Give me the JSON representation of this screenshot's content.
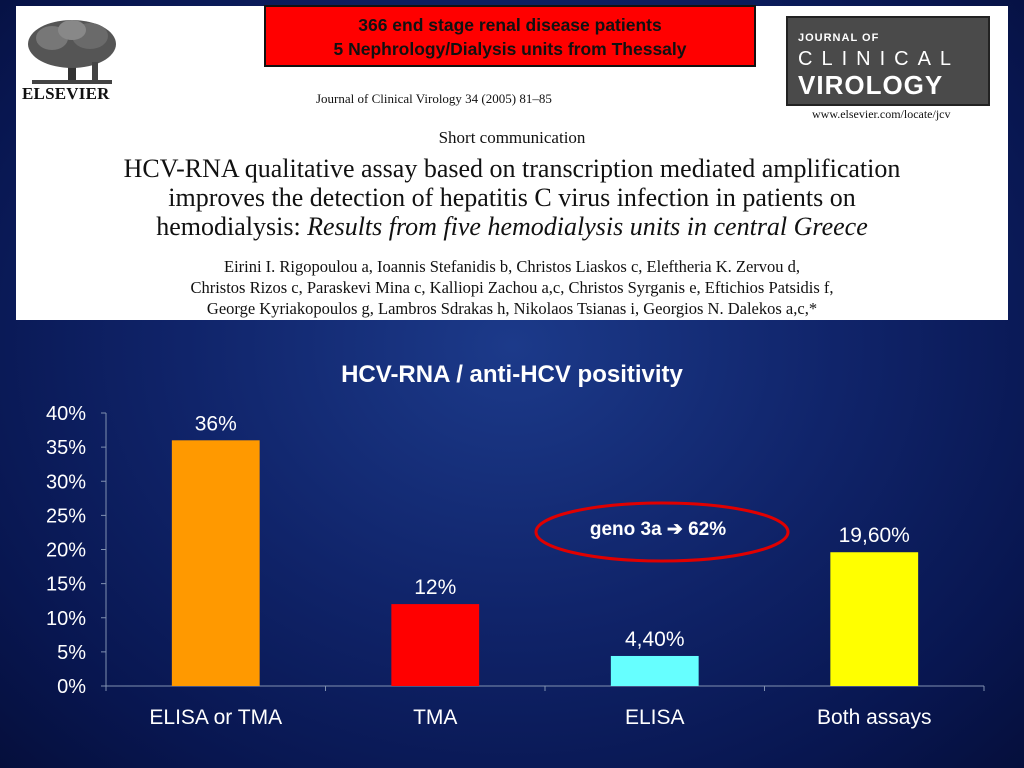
{
  "paper": {
    "publisher": "ELSEVIER",
    "citation": "Journal of Clinical Virology 34 (2005) 81–85",
    "logo_line1": "JOURNAL OF",
    "logo_line2": "CLINICAL",
    "logo_line3": "VIROLOGY",
    "url": "www.elsevier.com/locate/jcv",
    "section": "Short communication",
    "title_line1": "HCV-RNA qualitative assay based on transcription mediated amplification",
    "title_line2": "improves the detection of hepatitis C virus infection in patients on",
    "title_line3_plain": "hemodialysis: ",
    "title_line3_italic": "Results from five hemodialysis units in central Greece",
    "authors_line1": "Eirini I. Rigopoulou a, Ioannis Stefanidis b, Christos Liaskos c, Eleftheria K. Zervou d,",
    "authors_line2": "Christos Rizos c, Paraskevi Mina c, Kalliopi Zachou a,c, Christos Syrganis e, Eftichios Patsidis f,",
    "authors_line3": "George Kyriakopoulos g, Lambros Sdrakas h, Nikolaos Tsianas i, Georgios N. Dalekos a,c,*"
  },
  "banner": {
    "line1": "366 end stage renal disease patients",
    "line2": "5 Nephrology/Dialysis units from Thessaly"
  },
  "annotation": {
    "text": "geno 3a ➔ 62%"
  },
  "colors": {
    "bar1": "#ff9900",
    "bar2": "#ff0000",
    "bar3": "#66ffff",
    "bar4": "#ffff00",
    "annotation_ring": "#e00000"
  },
  "chart_data": {
    "type": "bar",
    "title": "HCV-RNA / anti-HCV positivity",
    "categories": [
      "ELISA or TMA",
      "TMA",
      "ELISA",
      "Both assays"
    ],
    "values": [
      36,
      12,
      4.4,
      19.6
    ],
    "value_labels": [
      "36%",
      "12%",
      "4,40%",
      "19,60%"
    ],
    "ylim": [
      0,
      40
    ],
    "yticks": [
      0,
      5,
      10,
      15,
      20,
      25,
      30,
      35,
      40
    ],
    "ytick_labels": [
      "0%",
      "5%",
      "10%",
      "15%",
      "20%",
      "25%",
      "30%",
      "35%",
      "40%"
    ],
    "xlabel": "",
    "ylabel": "",
    "grid": false,
    "legend": "none"
  }
}
